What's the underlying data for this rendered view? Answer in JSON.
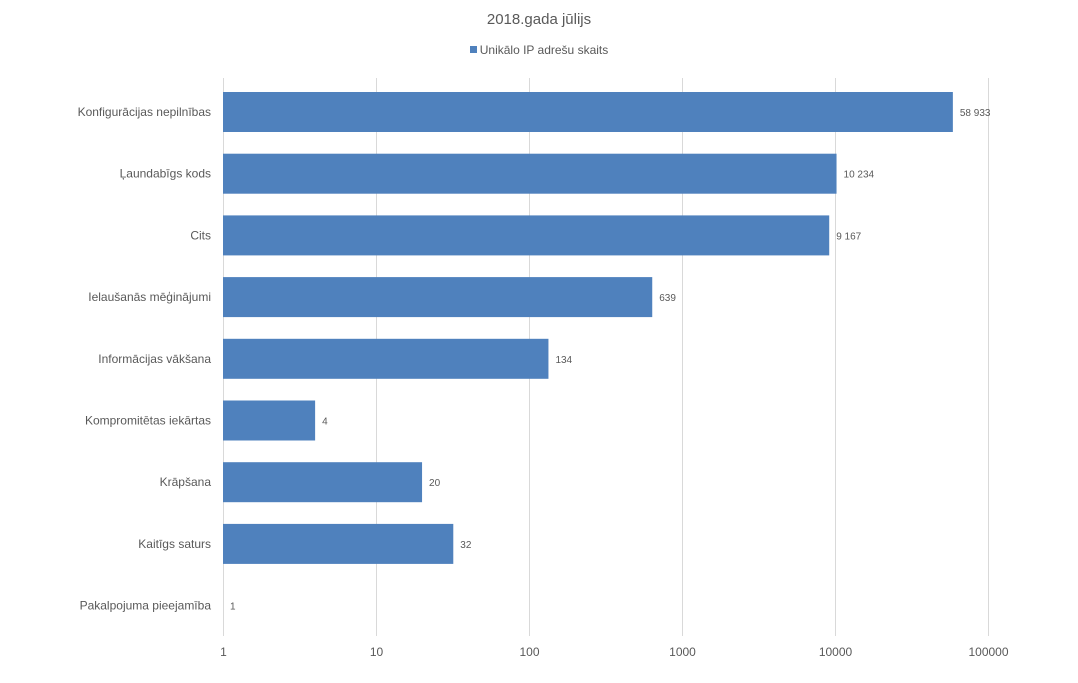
{
  "chart_data": {
    "type": "bar",
    "orientation": "horizontal",
    "title": "2018.gada jūlijs",
    "xscale": "log",
    "xlim": [
      1,
      100000
    ],
    "x_ticks": [
      "1",
      "10",
      "100",
      "1000",
      "10000",
      "100000"
    ],
    "x_tick_values": [
      1,
      10,
      100,
      1000,
      10000,
      100000
    ],
    "legend_position": "top",
    "grid": "vertical",
    "bar_color": "#4F81BD",
    "categories": [
      "Konfigurācijas nepilnības",
      "Ļaundabīgs kods",
      "Cits",
      "Ielaušanās mēģinājumi",
      "Informācijas vākšana",
      "Kompromitētas iekārtas",
      "Krāpšana",
      "Kaitīgs saturs",
      "Pakalpojuma pieejamība"
    ],
    "series": [
      {
        "name": "Unikālo IP adrešu skaits",
        "values": [
          58933,
          10234,
          9167,
          639,
          134,
          4,
          20,
          32,
          1
        ],
        "labels": [
          "58 933",
          "10 234",
          "9 167",
          "639",
          "134",
          "4",
          "20",
          "32",
          "1"
        ]
      }
    ]
  }
}
